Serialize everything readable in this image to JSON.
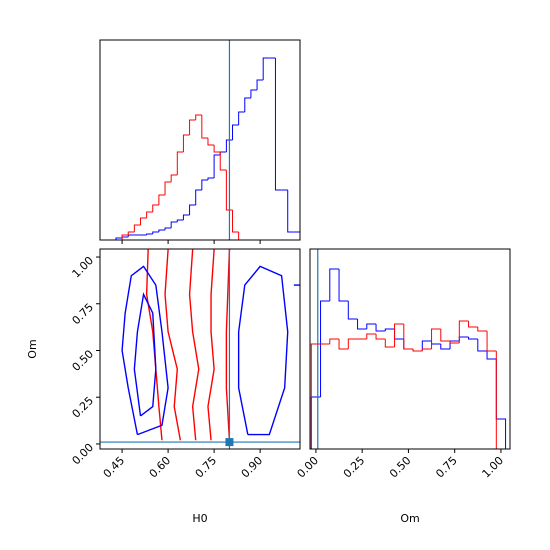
{
  "chart_data": [
    {
      "type": "histogram",
      "xlim": [
        0.378,
        1.03
      ],
      "ylim": [
        0,
        200
      ],
      "truth_x": 0.8,
      "truth_color": "#1f77b4",
      "bins": [
        0.39,
        0.41,
        0.43,
        0.45,
        0.47,
        0.49,
        0.51,
        0.53,
        0.55,
        0.57,
        0.59,
        0.61,
        0.63,
        0.65,
        0.67,
        0.69,
        0.71,
        0.73,
        0.75,
        0.77,
        0.79,
        0.81,
        0.83,
        0.85,
        0.87,
        0.89,
        0.91,
        0.93,
        0.95,
        0.97,
        0.99,
        1.01,
        1.03
      ],
      "series": [
        {
          "color": "#0000ff",
          "values": [
            0,
            0,
            2,
            3,
            5,
            5,
            5,
            6,
            8,
            10,
            12,
            18,
            20,
            25,
            35,
            50,
            60,
            62,
            85,
            88,
            100,
            115,
            128,
            142,
            150,
            160,
            182,
            182,
            50,
            50,
            8,
            8
          ]
        },
        {
          "color": "#ff0000",
          "values": [
            0,
            0,
            0,
            5,
            8,
            15,
            22,
            28,
            35,
            45,
            58,
            65,
            88,
            105,
            120,
            125,
            102,
            95,
            88,
            70,
            30,
            8,
            0,
            0,
            0,
            0,
            0,
            0,
            0,
            0,
            0,
            0
          ]
        }
      ]
    },
    {
      "type": "contour",
      "xlabel": "H0",
      "ylabel": "Om",
      "xlim": [
        0.378,
        1.03
      ],
      "ylim": [
        -0.027,
        1.043
      ],
      "xticks": [
        0.45,
        {
          "value": 0.6,
          "label": "0.60"
        },
        0.75,
        {
          "value": 0.9,
          "label": "0.90"
        }
      ],
      "yticks": [
        {
          "value": 0,
          "label": "0.00"
        },
        0.25,
        {
          "value": 0.5,
          "label": "0.50"
        },
        0.75,
        {
          "value": 1,
          "label": "1.00"
        }
      ],
      "truth_x": 0.8,
      "truth_y": 0.01,
      "truth_color": "#1f77b4",
      "contours": [
        {
          "color": "#ff0000",
          "x": [
            0.58,
            0.57,
            0.56,
            0.55,
            0.53,
            0.535
          ],
          "y": [
            0.02,
            0.2,
            0.4,
            0.6,
            0.8,
            1.04
          ]
        },
        {
          "color": "#ff0000",
          "x": [
            0.64,
            0.62,
            0.63,
            0.6,
            0.59,
            0.6
          ],
          "y": [
            0.02,
            0.2,
            0.4,
            0.6,
            0.8,
            1.04
          ]
        },
        {
          "color": "#ff0000",
          "x": [
            0.69,
            0.68,
            0.7,
            0.68,
            0.67,
            0.68
          ],
          "y": [
            0.02,
            0.2,
            0.4,
            0.6,
            0.8,
            1.04
          ]
        },
        {
          "color": "#ff0000",
          "x": [
            0.74,
            0.73,
            0.75,
            0.74,
            0.74,
            0.75
          ],
          "y": [
            0.02,
            0.2,
            0.4,
            0.6,
            0.8,
            1.04
          ]
        },
        {
          "color": "#ff0000",
          "x": [
            0.8,
            0.79,
            0.79,
            0.8
          ],
          "y": [
            0.02,
            0.3,
            0.6,
            1.04
          ]
        },
        {
          "color": "#0000ff",
          "x": [
            0.5,
            0.47,
            0.45,
            0.46,
            0.48,
            0.52,
            0.56,
            0.58,
            0.6,
            0.58,
            0.5
          ],
          "y": [
            0.05,
            0.3,
            0.5,
            0.7,
            0.9,
            0.95,
            0.85,
            0.6,
            0.3,
            0.1,
            0.05
          ]
        },
        {
          "color": "#0000ff",
          "x": [
            0.51,
            0.49,
            0.5,
            0.52,
            0.55,
            0.56,
            0.55,
            0.51
          ],
          "y": [
            0.15,
            0.4,
            0.6,
            0.8,
            0.7,
            0.4,
            0.2,
            0.15
          ]
        },
        {
          "color": "#0000ff",
          "x": [
            0.86,
            0.83,
            0.83,
            0.85,
            0.9,
            0.97,
            0.99,
            0.98,
            0.93,
            0.86
          ],
          "y": [
            0.05,
            0.3,
            0.6,
            0.85,
            0.95,
            0.9,
            0.6,
            0.3,
            0.05,
            0.05
          ]
        },
        {
          "color": "#0000ff",
          "x": [
            1.01,
            1.02,
            1.04
          ],
          "y": [
            0.85,
            0.85,
            0.85
          ]
        }
      ]
    },
    {
      "type": "histogram",
      "xlabel": "Om",
      "xlim": [
        -0.032,
        1.049
      ],
      "ylim": [
        0,
        200
      ],
      "truth_x": 0.01,
      "truth_color": "#1f77b4",
      "xticks": [
        {
          "value": 0,
          "label": "0.00"
        },
        0.25,
        {
          "value": 0.5,
          "label": "0.50"
        },
        0.75,
        {
          "value": 1,
          "label": "1.00"
        }
      ],
      "bins": [
        -0.025,
        0.025,
        0.075,
        0.125,
        0.175,
        0.225,
        0.275,
        0.325,
        0.375,
        0.425,
        0.475,
        0.525,
        0.575,
        0.625,
        0.675,
        0.725,
        0.775,
        0.825,
        0.875,
        0.925,
        0.975,
        1.025
      ],
      "series": [
        {
          "color": "#0000ff",
          "values": [
            52,
            148,
            180,
            148,
            130,
            120,
            125,
            118,
            120,
            110,
            100,
            98,
            108,
            105,
            100,
            108,
            112,
            110,
            98,
            90,
            30
          ]
        },
        {
          "color": "#ff0000",
          "values": [
            105,
            105,
            110,
            100,
            110,
            110,
            115,
            110,
            102,
            125,
            100,
            98,
            100,
            120,
            108,
            106,
            128,
            122,
            118,
            98,
            0
          ]
        }
      ]
    }
  ]
}
